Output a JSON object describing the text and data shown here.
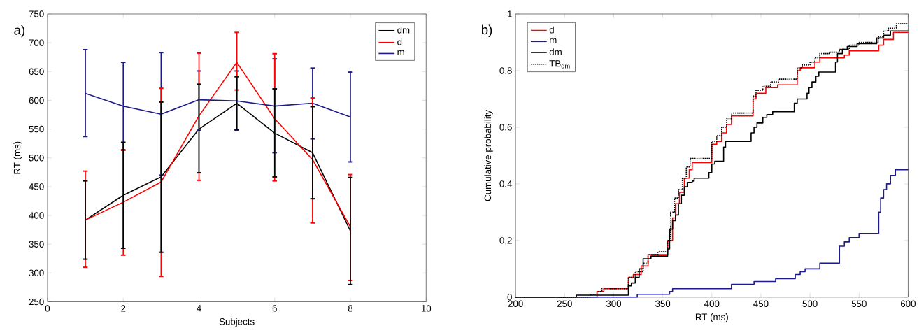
{
  "chart_data": [
    {
      "type": "line",
      "annotations": [
        "a)"
      ],
      "xlabel": "Subjects",
      "ylabel": "RT (ms)",
      "x": [
        1,
        2,
        3,
        4,
        5,
        6,
        7,
        8
      ],
      "xlim": [
        0,
        10
      ],
      "ylim": [
        250,
        750
      ],
      "xticks": [
        0,
        2,
        4,
        6,
        8,
        10
      ],
      "yticks": [
        250,
        300,
        350,
        400,
        450,
        500,
        550,
        600,
        650,
        700,
        750
      ],
      "legend": "top right",
      "series": [
        {
          "name": "dm",
          "color": "#000000",
          "values": [
            392,
            435,
            467,
            550,
            595,
            543,
            509,
            373
          ],
          "errors": [
            [
              324,
              460
            ],
            [
              343,
              527
            ],
            [
              336,
              597
            ],
            [
              474,
              628
            ],
            [
              549,
              641
            ],
            [
              467,
              620
            ],
            [
              429,
              589
            ],
            [
              280,
              466
            ]
          ]
        },
        {
          "name": "d",
          "color": "#ff0000",
          "values": [
            392,
            423,
            458,
            573,
            666,
            568,
            497,
            380
          ],
          "errors": [
            [
              310,
              477
            ],
            [
              331,
              513
            ],
            [
              294,
              621
            ],
            [
              461,
              682
            ],
            [
              618,
              718
            ],
            [
              460,
              681
            ],
            [
              387,
              604
            ],
            [
              287,
              471
            ]
          ]
        },
        {
          "name": "m",
          "color": "#1c1a8c",
          "values": [
            612,
            590,
            576,
            601,
            599,
            590,
            595,
            571
          ],
          "errors": [
            [
              537,
              688
            ],
            [
              514,
              666
            ],
            [
              470,
              683
            ],
            [
              548,
              651
            ],
            [
              548,
              651
            ],
            [
              509,
              672
            ],
            [
              533,
              656
            ],
            [
              493,
              649
            ]
          ]
        }
      ]
    },
    {
      "type": "step",
      "annotations": [
        "b)"
      ],
      "xlabel": "RT (ms)",
      "ylabel": "Cumulative probability",
      "xlim": [
        200,
        600
      ],
      "ylim": [
        0,
        1
      ],
      "xticks": [
        200,
        250,
        300,
        350,
        400,
        450,
        500,
        550,
        600
      ],
      "yticks": [
        0,
        0.2,
        0.4,
        0.6,
        0.8,
        1
      ],
      "legend": "top left",
      "series": [
        {
          "name": "d",
          "color": "#ff0000",
          "x": [
            200,
            283,
            290,
            315,
            320,
            328,
            335,
            355,
            360,
            363,
            367,
            372,
            377,
            380,
            400,
            405,
            410,
            415,
            420,
            442,
            445,
            455,
            467,
            487,
            490,
            505,
            510,
            535,
            540,
            570,
            575,
            585,
            600
          ],
          "values": [
            0,
            0.02,
            0.03,
            0.07,
            0.08,
            0.11,
            0.15,
            0.2,
            0.28,
            0.33,
            0.37,
            0.42,
            0.45,
            0.475,
            0.54,
            0.55,
            0.58,
            0.61,
            0.64,
            0.7,
            0.72,
            0.74,
            0.75,
            0.8,
            0.81,
            0.83,
            0.845,
            0.855,
            0.87,
            0.89,
            0.91,
            0.935,
            0.935
          ]
        },
        {
          "name": "m",
          "color": "#1c1a8c",
          "x": [
            200,
            324,
            357,
            360,
            420,
            443,
            465,
            485,
            490,
            495,
            510,
            530,
            535,
            540,
            550,
            570,
            572,
            575,
            578,
            582,
            587,
            600
          ],
          "values": [
            0,
            0.01,
            0.02,
            0.03,
            0.045,
            0.055,
            0.065,
            0.08,
            0.09,
            0.1,
            0.12,
            0.18,
            0.195,
            0.21,
            0.225,
            0.3,
            0.35,
            0.38,
            0.4,
            0.43,
            0.45,
            0.45
          ]
        },
        {
          "name": "dm",
          "color": "#000000",
          "x": [
            200,
            262,
            315,
            318,
            322,
            326,
            330,
            338,
            355,
            357,
            360,
            363,
            366,
            369,
            372,
            375,
            380,
            382,
            397,
            400,
            403,
            412,
            414,
            440,
            443,
            446,
            452,
            456,
            462,
            484,
            487,
            497,
            499,
            502,
            506,
            509,
            526,
            528,
            533,
            538,
            548,
            568,
            575,
            582,
            600
          ],
          "values": [
            0,
            0.007,
            0.04,
            0.05,
            0.07,
            0.1,
            0.135,
            0.145,
            0.17,
            0.24,
            0.27,
            0.29,
            0.33,
            0.36,
            0.39,
            0.405,
            0.41,
            0.42,
            0.44,
            0.47,
            0.48,
            0.53,
            0.55,
            0.58,
            0.6,
            0.615,
            0.635,
            0.645,
            0.655,
            0.685,
            0.7,
            0.72,
            0.74,
            0.76,
            0.78,
            0.795,
            0.83,
            0.86,
            0.875,
            0.885,
            0.895,
            0.915,
            0.925,
            0.94,
            0.94
          ]
        },
        {
          "name": "TB$_{dm}$",
          "color": "#000000",
          "line_style": "dotted",
          "x": [
            200,
            276,
            283,
            288,
            315,
            322,
            330,
            335,
            345,
            355,
            358,
            362,
            366,
            370,
            374,
            378,
            400,
            405,
            410,
            415,
            420,
            442,
            445,
            452,
            460,
            468,
            487,
            492,
            500,
            505,
            510,
            520,
            530,
            540,
            550,
            570,
            575,
            580,
            588,
            600
          ],
          "values": [
            0,
            0.01,
            0.02,
            0.03,
            0.07,
            0.09,
            0.12,
            0.15,
            0.16,
            0.2,
            0.3,
            0.35,
            0.38,
            0.42,
            0.46,
            0.49,
            0.55,
            0.57,
            0.6,
            0.63,
            0.65,
            0.71,
            0.73,
            0.745,
            0.76,
            0.77,
            0.81,
            0.82,
            0.83,
            0.845,
            0.86,
            0.865,
            0.875,
            0.89,
            0.9,
            0.92,
            0.94,
            0.95,
            0.965,
            0.965
          ]
        }
      ]
    }
  ]
}
